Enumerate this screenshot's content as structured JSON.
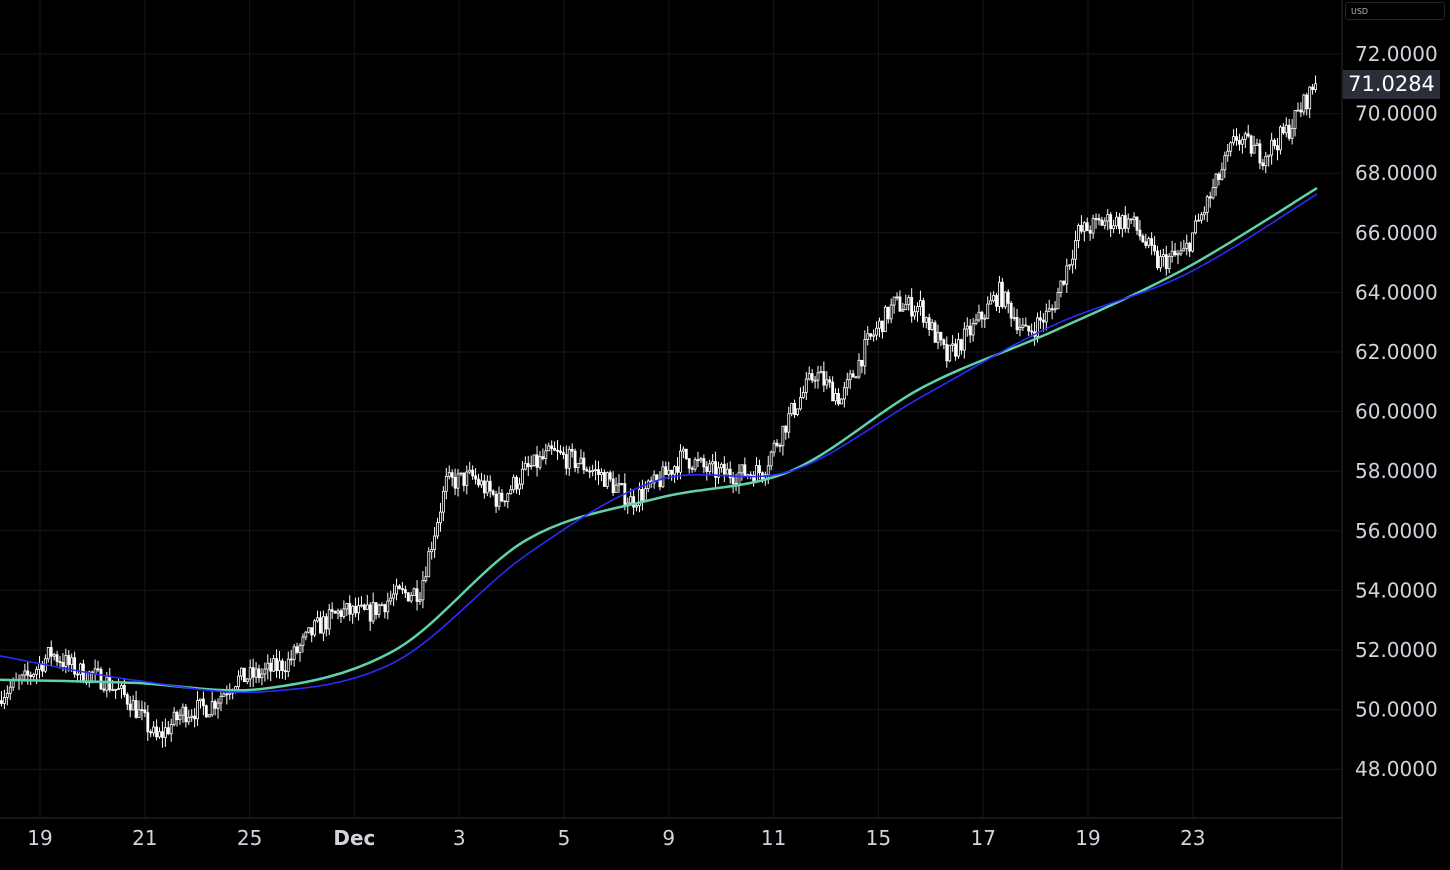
{
  "chart_data": {
    "type": "candlestick",
    "currency": "USD",
    "last_price": "71.0284",
    "y_ticks": [
      "48.0000",
      "50.0000",
      "52.0000",
      "54.0000",
      "56.0000",
      "58.0000",
      "60.0000",
      "62.0000",
      "64.0000",
      "66.0000",
      "68.0000",
      "70.0000",
      "72.0000"
    ],
    "ylim": [
      47,
      73
    ],
    "x_ticks": [
      {
        "label": "19",
        "month": false
      },
      {
        "label": "21",
        "month": false
      },
      {
        "label": "25",
        "month": false
      },
      {
        "label": "Dec",
        "month": true
      },
      {
        "label": "3",
        "month": false
      },
      {
        "label": "5",
        "month": false
      },
      {
        "label": "9",
        "month": false
      },
      {
        "label": "11",
        "month": false
      },
      {
        "label": "15",
        "month": false
      },
      {
        "label": "17",
        "month": false
      },
      {
        "label": "19",
        "month": false
      },
      {
        "label": "23",
        "month": false
      }
    ],
    "grid": true,
    "close_path": [
      50.5,
      51.0,
      51.9,
      51.3,
      51.0,
      50.3,
      49.0,
      49.9,
      50.1,
      51.0,
      51.2,
      51.6,
      52.7,
      53.3,
      53.2,
      53.8,
      54.0,
      57.6,
      57.8,
      57.0,
      58.0,
      58.6,
      58.3,
      57.8,
      57.0,
      57.6,
      58.5,
      58.0,
      57.9,
      58.0,
      59.8,
      61.3,
      60.4,
      62.3,
      63.6,
      63.5,
      61.8,
      62.8,
      64.0,
      62.6,
      63.4,
      66.0,
      66.4,
      66.4,
      65.0,
      65.3,
      67.2,
      69.2,
      68.6,
      69.5,
      71.0
    ],
    "moving_averages": [
      {
        "color": "#5fd3a8",
        "values": [
          51.0,
          50.9,
          50.7,
          52.0,
          55.7,
          57.1,
          58.0,
          60.8,
          62.7,
          64.8,
          67.5
        ]
      },
      {
        "color": "#2b2bff",
        "values": [
          51.8,
          51.0,
          50.6,
          51.6,
          55.2,
          57.7,
          58.0,
          60.5,
          62.9,
          64.6,
          67.3
        ]
      }
    ],
    "candle_color": "#ffffff"
  }
}
